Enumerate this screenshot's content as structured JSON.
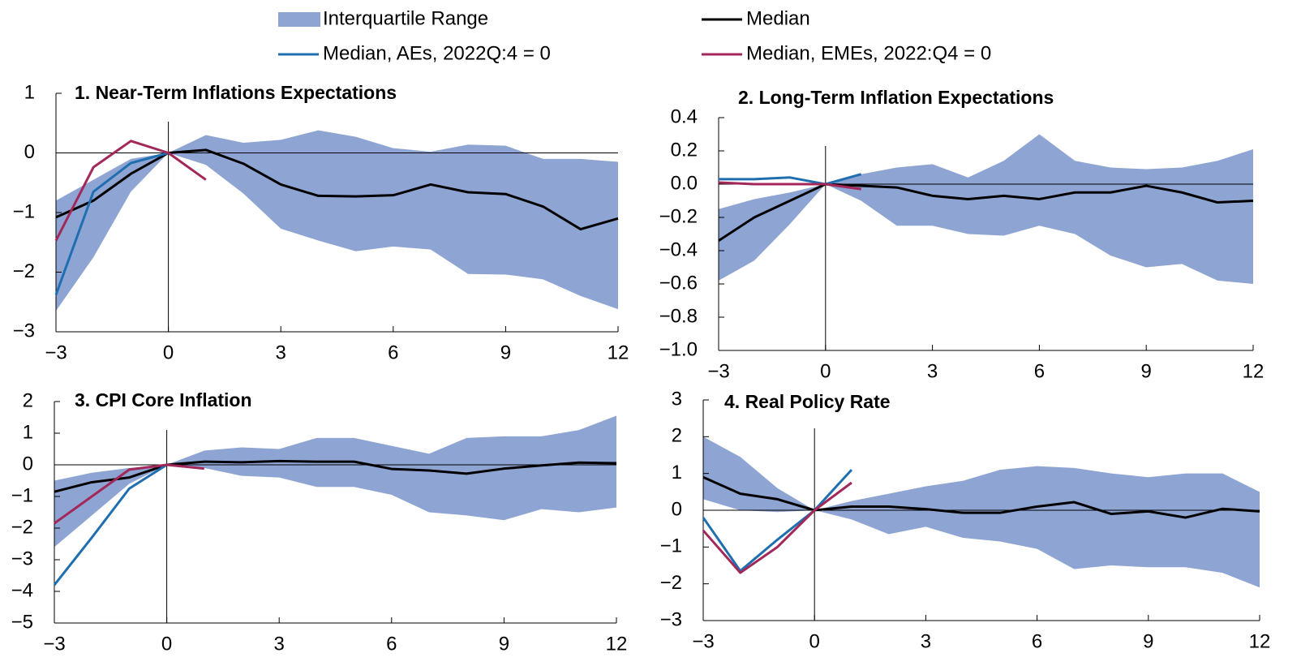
{
  "chart_data": [
    {
      "type": "line",
      "title": "1. Near-Term Inflations Expectations",
      "x": [
        -3,
        -2,
        -1,
        0,
        1,
        2,
        3,
        4,
        5,
        6,
        7,
        8,
        9,
        10,
        11,
        12
      ],
      "xlim": [
        -3,
        12
      ],
      "xticks": [
        {
          "value": -3,
          "label": "−3"
        },
        0,
        3,
        6,
        9,
        12
      ],
      "ylim": [
        -3,
        1
      ],
      "yticks": [
        {
          "value": -3,
          "label": "−3"
        },
        {
          "value": -2,
          "label": "−2"
        },
        {
          "value": -1,
          "label": "−1"
        },
        0,
        1
      ],
      "series": [
        {
          "name": "Interquartile Range",
          "type": "band",
          "color": "#8ea5d4",
          "upper": [
            -0.8,
            -0.45,
            -0.1,
            0,
            0.3,
            0.17,
            0.22,
            0.38,
            0.27,
            0.08,
            0.02,
            0.14,
            0.12,
            -0.1,
            -0.1,
            -0.15
          ],
          "lower": [
            -2.65,
            -1.75,
            -0.65,
            0,
            -0.2,
            -0.68,
            -1.27,
            -1.47,
            -1.65,
            -1.57,
            -1.62,
            -2.03,
            -2.04,
            -2.12,
            -2.4,
            -2.62
          ]
        },
        {
          "name": "Median",
          "color": "#000000",
          "values": [
            -1.08,
            -0.8,
            -0.35,
            0,
            0.05,
            -0.18,
            -0.53,
            -0.72,
            -0.73,
            -0.71,
            -0.53,
            -0.66,
            -0.69,
            -0.9,
            -1.28,
            -1.1
          ]
        },
        {
          "name": "Median, AEs, 2022Q:4 = 0",
          "color": "#1f6fb0",
          "values": [
            -2.38,
            -0.65,
            -0.17,
            0,
            null,
            null,
            null,
            null,
            null,
            null,
            null,
            null,
            null,
            null,
            null,
            null
          ]
        },
        {
          "name": "Median, EMEs, 2022:Q4 = 0",
          "color": "#a3285a",
          "values": [
            -1.47,
            -0.24,
            0.2,
            0,
            -0.45,
            null,
            null,
            null,
            null,
            null,
            null,
            null,
            null,
            null,
            null,
            null
          ]
        }
      ]
    },
    {
      "type": "line",
      "title": "2. Long-Term Inflation Expectations",
      "x": [
        -3,
        -2,
        -1,
        0,
        1,
        2,
        3,
        4,
        5,
        6,
        7,
        8,
        9,
        10,
        11,
        12
      ],
      "xlim": [
        -3,
        12
      ],
      "xticks": [
        {
          "value": -3,
          "label": "−3"
        },
        0,
        3,
        6,
        9,
        12
      ],
      "ylim": [
        -1,
        0.4
      ],
      "yticks": [
        {
          "value": -1,
          "label": "−1.0"
        },
        {
          "value": -0.8,
          "label": "−0.8"
        },
        {
          "value": -0.6,
          "label": "−0.6"
        },
        {
          "value": -0.4,
          "label": "−0.4"
        },
        {
          "value": -0.2,
          "label": "−0.2"
        },
        {
          "value": 0,
          "label": "0.0"
        },
        0.2,
        0.4
      ],
      "series": [
        {
          "name": "Interquartile Range",
          "type": "band",
          "color": "#8ea5d4",
          "upper": [
            -0.15,
            -0.09,
            -0.05,
            0,
            0.06,
            0.1,
            0.12,
            0.04,
            0.14,
            0.3,
            0.14,
            0.1,
            0.09,
            0.1,
            0.14,
            0.21
          ],
          "lower": [
            -0.58,
            -0.46,
            -0.24,
            0,
            -0.1,
            -0.25,
            -0.25,
            -0.3,
            -0.31,
            -0.25,
            -0.3,
            -0.43,
            -0.5,
            -0.48,
            -0.58,
            -0.6
          ]
        },
        {
          "name": "Median",
          "color": "#000000",
          "values": [
            -0.34,
            -0.2,
            -0.1,
            0,
            -0.01,
            -0.02,
            -0.07,
            -0.09,
            -0.07,
            -0.09,
            -0.05,
            -0.05,
            -0.01,
            -0.05,
            -0.11,
            -0.1
          ]
        },
        {
          "name": "Median, AEs, 2022Q:4 = 0",
          "color": "#1f6fb0",
          "values": [
            0.03,
            0.03,
            0.04,
            0,
            0.06,
            null,
            null,
            null,
            null,
            null,
            null,
            null,
            null,
            null,
            null,
            null
          ]
        },
        {
          "name": "Median, EMEs, 2022:Q4 = 0",
          "color": "#a3285a",
          "values": [
            0.01,
            0,
            0,
            0,
            -0.03,
            null,
            null,
            null,
            null,
            null,
            null,
            null,
            null,
            null,
            null,
            null
          ]
        }
      ]
    },
    {
      "type": "line",
      "title": "3. CPI Core Inflation",
      "x": [
        -3,
        -2,
        -1,
        0,
        1,
        2,
        3,
        4,
        5,
        6,
        7,
        8,
        9,
        10,
        11,
        12
      ],
      "xlim": [
        -3,
        12
      ],
      "xticks": [
        {
          "value": -3,
          "label": "−3"
        },
        0,
        3,
        6,
        9,
        12
      ],
      "ylim": [
        -5,
        2
      ],
      "yticks": [
        {
          "value": -5,
          "label": "−5"
        },
        {
          "value": -4,
          "label": "−4"
        },
        {
          "value": -3,
          "label": "−3"
        },
        {
          "value": -2,
          "label": "−2"
        },
        {
          "value": -1,
          "label": "−1"
        },
        0,
        1,
        2
      ],
      "series": [
        {
          "name": "Interquartile Range",
          "type": "band",
          "color": "#8ea5d4",
          "upper": [
            -0.5,
            -0.25,
            -0.1,
            0,
            0.45,
            0.55,
            0.5,
            0.85,
            0.85,
            0.6,
            0.35,
            0.85,
            0.9,
            0.9,
            1.1,
            1.55
          ],
          "lower": [
            -2.6,
            -1.6,
            -0.6,
            0,
            -0.1,
            -0.35,
            -0.4,
            -0.7,
            -0.7,
            -0.95,
            -1.5,
            -1.6,
            -1.75,
            -1.4,
            -1.5,
            -1.35
          ]
        },
        {
          "name": "Median",
          "color": "#000000",
          "values": [
            -0.85,
            -0.55,
            -0.4,
            0,
            0.1,
            0.08,
            0.12,
            0.1,
            0.1,
            -0.13,
            -0.18,
            -0.28,
            -0.12,
            -0.02,
            0.07,
            0.05
          ]
        },
        {
          "name": "Median, AEs, 2022Q:4 = 0",
          "color": "#1f6fb0",
          "values": [
            -3.8,
            -2.3,
            -0.75,
            0,
            null,
            null,
            null,
            null,
            null,
            null,
            null,
            null,
            null,
            null,
            null,
            null
          ]
        },
        {
          "name": "Median, EMEs, 2022:Q4 = 0",
          "color": "#a3285a",
          "values": [
            -1.85,
            -1,
            -0.15,
            0,
            -0.12,
            null,
            null,
            null,
            null,
            null,
            null,
            null,
            null,
            null,
            null,
            null
          ]
        }
      ]
    },
    {
      "type": "line",
      "title": "4. Real Policy Rate",
      "x": [
        -3,
        -2,
        -1,
        0,
        1,
        2,
        3,
        4,
        5,
        6,
        7,
        8,
        9,
        10,
        11,
        12
      ],
      "xlim": [
        -3,
        12
      ],
      "xticks": [
        {
          "value": -3,
          "label": "−3"
        },
        0,
        3,
        6,
        9,
        12
      ],
      "ylim": [
        -3,
        3
      ],
      "yticks": [
        {
          "value": -3,
          "label": "−3"
        },
        {
          "value": -2,
          "label": "−2"
        },
        {
          "value": -1,
          "label": "−1"
        },
        0,
        1,
        2,
        3
      ],
      "series": [
        {
          "name": "Interquartile Range",
          "type": "band",
          "color": "#8ea5d4",
          "upper": [
            2,
            1.45,
            0.6,
            0,
            0.25,
            0.45,
            0.65,
            0.8,
            1.1,
            1.2,
            1.15,
            1,
            0.9,
            1,
            1,
            0.5
          ],
          "lower": [
            0.3,
            0,
            -0.05,
            0,
            -0.25,
            -0.65,
            -0.45,
            -0.75,
            -0.85,
            -1.05,
            -1.6,
            -1.5,
            -1.55,
            -1.55,
            -1.7,
            -2.1
          ]
        },
        {
          "name": "Median",
          "color": "#000000",
          "values": [
            0.9,
            0.45,
            0.3,
            0,
            0.1,
            0.1,
            0.03,
            -0.07,
            -0.07,
            0.1,
            0.22,
            -0.1,
            -0.03,
            -0.2,
            0.04,
            -0.03
          ]
        },
        {
          "name": "Median, AEs, 2022Q:4 = 0",
          "color": "#1f6fb0",
          "values": [
            -0.2,
            -1.65,
            -0.8,
            0,
            1.1,
            null,
            null,
            null,
            null,
            null,
            null,
            null,
            null,
            null,
            null,
            null
          ]
        },
        {
          "name": "Median, EMEs, 2022:Q4 = 0",
          "color": "#a3285a",
          "values": [
            -0.55,
            -1.7,
            -1,
            0,
            0.75,
            null,
            null,
            null,
            null,
            null,
            null,
            null,
            null,
            null,
            null,
            null
          ]
        }
      ]
    }
  ]
}
